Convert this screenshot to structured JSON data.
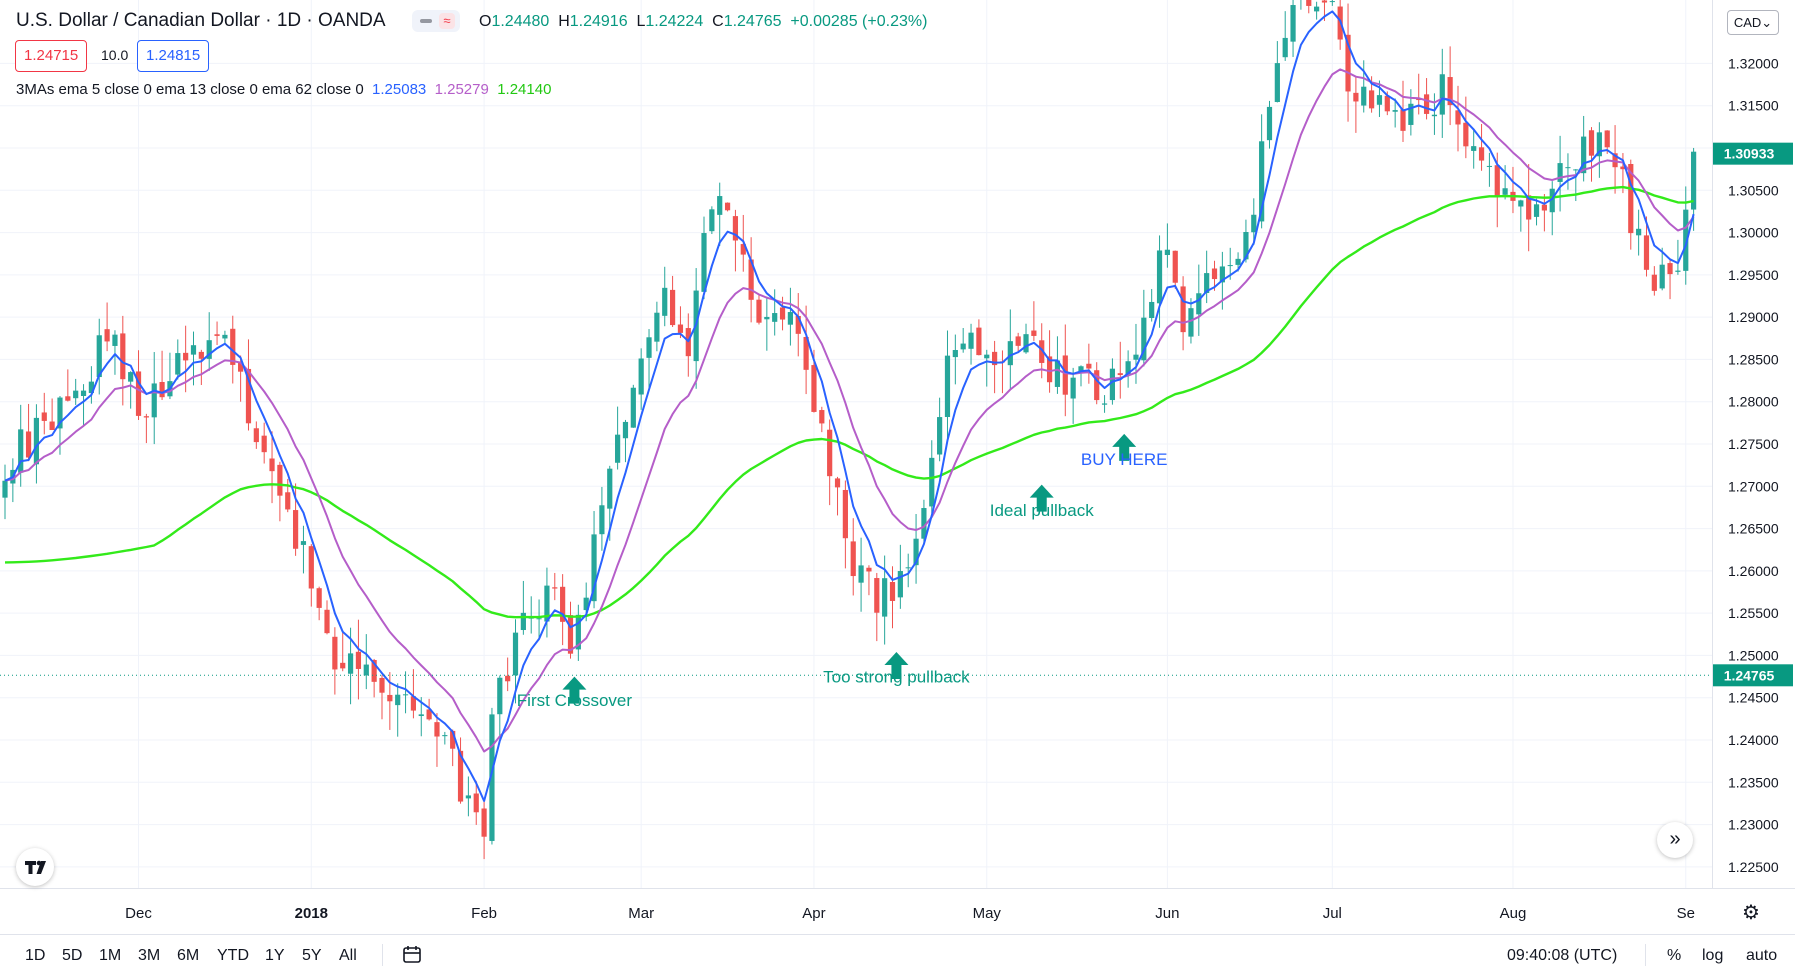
{
  "header": {
    "title": "U.S. Dollar / Canadian Dollar · 1D · OANDA",
    "ohlc": {
      "open_label": "O",
      "open": "1.24480",
      "high_label": "H",
      "high": "1.24916",
      "low_label": "L",
      "low": "1.24224",
      "close_label": "C",
      "close": "1.24765",
      "change": "+0.00285 (+0.23%)"
    },
    "sell_price": "1.24715",
    "spread": "10.0",
    "buy_price": "1.24815",
    "indicator": {
      "label": "3MAs ema 5 close 0 ema 13 close 0 ema 62 close 0",
      "v1": "1.25083",
      "v2": "1.25279",
      "v3": "1.24140"
    },
    "currency": "CAD"
  },
  "colors": {
    "up": "#26a69a",
    "down": "#ef5350",
    "ema_fast": "#2962ff",
    "ema_mid": "#b55ec9",
    "ema_slow": "#33ea1a",
    "annotation": "#089981"
  },
  "chart_data": {
    "type": "candlestick",
    "symbol": "USDCAD",
    "timeframe": "1D",
    "ylim": [
      1.2225,
      1.3275
    ],
    "y_ticks": [
      "1.32000",
      "1.31500",
      "1.31000",
      "1.30500",
      "1.30000",
      "1.29500",
      "1.29000",
      "1.28500",
      "1.28000",
      "1.27500",
      "1.27000",
      "1.26500",
      "1.26000",
      "1.25500",
      "1.25000",
      "1.24500",
      "1.24000",
      "1.23500",
      "1.23000",
      "1.22500"
    ],
    "x_ticks": [
      {
        "label": "Dec",
        "t": 17
      },
      {
        "label": "2018",
        "t": 39
      },
      {
        "label": "Feb",
        "t": 61
      },
      {
        "label": "Mar",
        "t": 81
      },
      {
        "label": "Apr",
        "t": 103
      },
      {
        "label": "May",
        "t": 125
      },
      {
        "label": "Jun",
        "t": 148
      },
      {
        "label": "Jul",
        "t": 169
      },
      {
        "label": "Aug",
        "t": 192
      },
      {
        "label": "Se",
        "t": 214
      }
    ],
    "current_price": "1.24765",
    "current_value": 1.24765,
    "last_tag_price": "1.30933",
    "last_tag_value": 1.30933,
    "series_labels": [
      "ema 5",
      "ema 13",
      "ema 62"
    ],
    "anchors": [
      [
        0,
        1.273
      ],
      [
        10,
        1.283
      ],
      [
        14,
        1.288
      ],
      [
        17,
        1.28
      ],
      [
        22,
        1.284
      ],
      [
        28,
        1.287
      ],
      [
        31,
        1.278
      ],
      [
        34,
        1.27
      ],
      [
        38,
        1.262
      ],
      [
        42,
        1.251
      ],
      [
        46,
        1.247
      ],
      [
        50,
        1.246
      ],
      [
        54,
        1.242
      ],
      [
        57,
        1.237
      ],
      [
        59,
        1.232
      ],
      [
        61,
        1.23
      ],
      [
        62,
        1.242
      ],
      [
        66,
        1.255
      ],
      [
        70,
        1.256
      ],
      [
        72,
        1.25
      ],
      [
        75,
        1.262
      ],
      [
        78,
        1.276
      ],
      [
        81,
        1.287
      ],
      [
        84,
        1.292
      ],
      [
        87,
        1.288
      ],
      [
        90,
        1.303
      ],
      [
        93,
        1.301
      ],
      [
        95,
        1.29
      ],
      [
        98,
        1.292
      ],
      [
        101,
        1.288
      ],
      [
        105,
        1.273
      ],
      [
        108,
        1.26
      ],
      [
        111,
        1.257
      ],
      [
        114,
        1.258
      ],
      [
        117,
        1.268
      ],
      [
        120,
        1.284
      ],
      [
        124,
        1.286
      ],
      [
        127,
        1.286
      ],
      [
        130,
        1.288
      ],
      [
        133,
        1.283
      ],
      [
        136,
        1.283
      ],
      [
        139,
        1.281
      ],
      [
        142,
        1.283
      ],
      [
        145,
        1.29
      ],
      [
        148,
        1.298
      ],
      [
        150,
        1.289
      ],
      [
        153,
        1.296
      ],
      [
        156,
        1.295
      ],
      [
        159,
        1.304
      ],
      [
        161,
        1.315
      ],
      [
        164,
        1.328
      ],
      [
        168,
        1.329
      ],
      [
        171,
        1.318
      ],
      [
        174,
        1.315
      ],
      [
        177,
        1.313
      ],
      [
        181,
        1.315
      ],
      [
        184,
        1.317
      ],
      [
        187,
        1.31
      ],
      [
        190,
        1.304
      ],
      [
        193,
        1.302
      ],
      [
        196,
        1.304
      ],
      [
        200,
        1.308
      ],
      [
        203,
        1.312
      ],
      [
        206,
        1.306
      ],
      [
        209,
        1.296
      ],
      [
        212,
        1.294
      ],
      [
        214,
        1.301
      ],
      [
        215,
        1.308
      ]
    ],
    "annotations": [
      {
        "text": "First Crossover",
        "t": 72.5,
        "arrow_price": 1.2475,
        "label_price": 1.244,
        "color": "#089981"
      },
      {
        "text": "Too strong pullback",
        "t": 113.5,
        "arrow_price": 1.2504,
        "label_price": 1.2468,
        "color": "#089981"
      },
      {
        "text": "Ideal pullback",
        "t": 132,
        "arrow_price": 1.2702,
        "label_price": 1.2665,
        "color": "#089981"
      },
      {
        "text": "BUY HERE",
        "t": 142.5,
        "arrow_price": 1.2762,
        "label_price": 1.2725,
        "color": "#2962ff"
      }
    ]
  },
  "bottom_bar": {
    "ranges": [
      "1D",
      "5D",
      "1M",
      "3M",
      "6M",
      "YTD",
      "1Y",
      "5Y",
      "All"
    ],
    "clock": "09:40:08 (UTC)",
    "percent": "%",
    "log": "log",
    "auto": "auto"
  }
}
